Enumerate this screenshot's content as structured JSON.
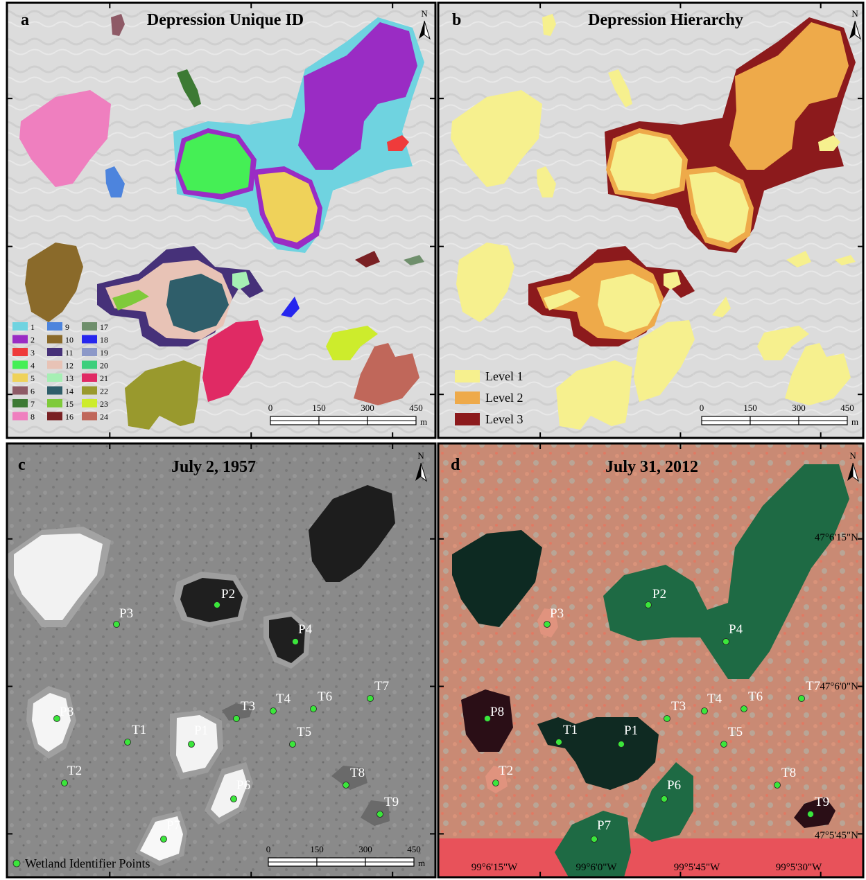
{
  "panels": {
    "a": {
      "letter": "a",
      "title": "Depression Unique ID"
    },
    "b": {
      "letter": "b",
      "title": "Depression Hierarchy"
    },
    "c": {
      "letter": "c",
      "title": "July 2, 1957"
    },
    "d": {
      "letter": "d",
      "title": "July 31, 2012"
    }
  },
  "north_label": "N",
  "id_legend": {
    "items": [
      {
        "id": "1",
        "color": "#6fd3e0"
      },
      {
        "id": "2",
        "color": "#9a2cc4"
      },
      {
        "id": "3",
        "color": "#ef3b3b"
      },
      {
        "id": "4",
        "color": "#45ef55"
      },
      {
        "id": "5",
        "color": "#efd25a"
      },
      {
        "id": "6",
        "color": "#8e5a66"
      },
      {
        "id": "7",
        "color": "#3d7a34"
      },
      {
        "id": "8",
        "color": "#ef7fbf"
      },
      {
        "id": "9",
        "color": "#4d84dd"
      },
      {
        "id": "10",
        "color": "#8a6a2a"
      },
      {
        "id": "11",
        "color": "#463179"
      },
      {
        "id": "12",
        "color": "#e8c3b6"
      },
      {
        "id": "13",
        "color": "#a6efb4"
      },
      {
        "id": "14",
        "color": "#2f5e6a"
      },
      {
        "id": "15",
        "color": "#7fca3a"
      },
      {
        "id": "16",
        "color": "#7a2124"
      },
      {
        "id": "17",
        "color": "#6f8f6c"
      },
      {
        "id": "18",
        "color": "#2626ee"
      },
      {
        "id": "19",
        "color": "#8c98c8"
      },
      {
        "id": "20",
        "color": "#3dcf7c"
      },
      {
        "id": "21",
        "color": "#e02a64"
      },
      {
        "id": "22",
        "color": "#99992d"
      },
      {
        "id": "23",
        "color": "#cdec2c"
      },
      {
        "id": "24",
        "color": "#c0675a"
      }
    ]
  },
  "level_legend": {
    "items": [
      {
        "label": "Level 1",
        "color": "#f6f08e"
      },
      {
        "label": "Level 2",
        "color": "#eeaa4a"
      },
      {
        "label": "Level 3",
        "color": "#8c1a1c"
      }
    ]
  },
  "level_colors": {
    "level1": "#f6f08e",
    "level2": "#eeaa4a",
    "level3": "#8c1a1c"
  },
  "scale_bar": {
    "ticks": [
      "0",
      "150",
      "300",
      "450"
    ],
    "unit": "m"
  },
  "point_legend": {
    "label": "Wetland Identifier Points",
    "color": "#3be63b"
  },
  "points_c": [
    {
      "name": "P2"
    },
    {
      "name": "P3"
    },
    {
      "name": "P4"
    },
    {
      "name": "P8"
    },
    {
      "name": "P1"
    },
    {
      "name": "P6"
    },
    {
      "name": "P7"
    },
    {
      "name": "T1"
    },
    {
      "name": "T2"
    },
    {
      "name": "T3"
    },
    {
      "name": "T4"
    },
    {
      "name": "T5"
    },
    {
      "name": "T6"
    },
    {
      "name": "T7"
    },
    {
      "name": "T8"
    },
    {
      "name": "T9"
    }
  ],
  "points_d": [
    {
      "name": "P2"
    },
    {
      "name": "P3"
    },
    {
      "name": "P4"
    },
    {
      "name": "P8"
    },
    {
      "name": "P1"
    },
    {
      "name": "P6"
    },
    {
      "name": "P7"
    },
    {
      "name": "T1"
    },
    {
      "name": "T2"
    },
    {
      "name": "T3"
    },
    {
      "name": "T4"
    },
    {
      "name": "T5"
    },
    {
      "name": "T6"
    },
    {
      "name": "T7"
    },
    {
      "name": "T8"
    },
    {
      "name": "T9"
    }
  ],
  "coordinates": {
    "lat": [
      "47°6'15\"N",
      "47°6'0\"N",
      "47°5'45\"N"
    ],
    "lon": [
      "99°6'15\"W",
      "99°6'0\"W",
      "99°5'45\"W",
      "99°5'30\"W"
    ]
  }
}
